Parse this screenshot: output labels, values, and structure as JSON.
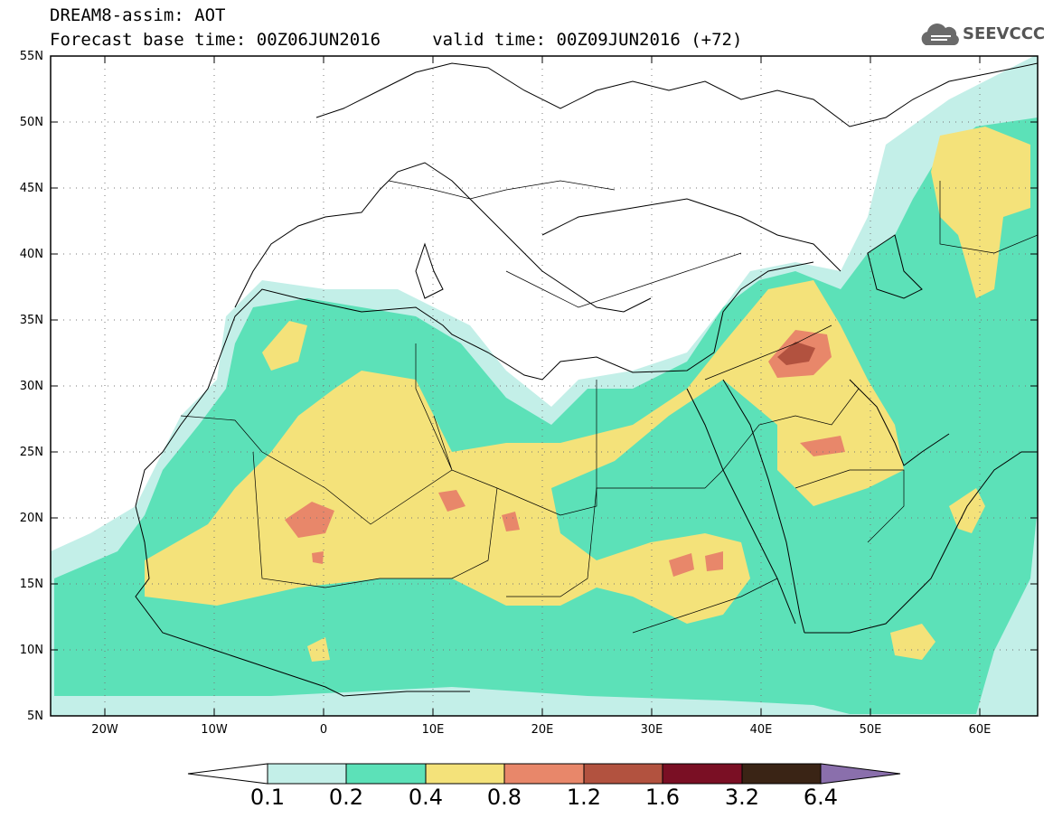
{
  "header": {
    "title_line1": "DREAM8-assim: AOT",
    "title_line2": "Forecast base time: 00Z06JUN2016     valid time: 00Z09JUN2016 (+72)"
  },
  "logo": {
    "text": "SEEVCCC",
    "icon": "cloud-icon"
  },
  "map": {
    "region": "North Africa, Middle East, Europe",
    "lon_range": [
      -25,
      65
    ],
    "lat_range": [
      5,
      55
    ],
    "lat_labels": [
      "55N",
      "50N",
      "45N",
      "40N",
      "35N",
      "30N",
      "25N",
      "20N",
      "15N",
      "10N",
      "5N"
    ],
    "lon_labels": [
      "20W",
      "10W",
      "0",
      "10E",
      "20E",
      "30E",
      "40E",
      "50E",
      "60E"
    ],
    "gridlines": "dotted"
  },
  "colorbar": {
    "thresholds": [
      "0.1",
      "0.2",
      "0.4",
      "0.8",
      "1.2",
      "1.6",
      "3.2",
      "6.4"
    ],
    "colors": {
      "below": "#ffffff",
      "c1": "#c3efe8",
      "c2": "#5ce1b8",
      "c3": "#f4e27a",
      "c4": "#e8876a",
      "c5": "#b2523f",
      "c6": "#7a0f24",
      "c7": "#3a2415",
      "above": "#8a6fac"
    }
  }
}
